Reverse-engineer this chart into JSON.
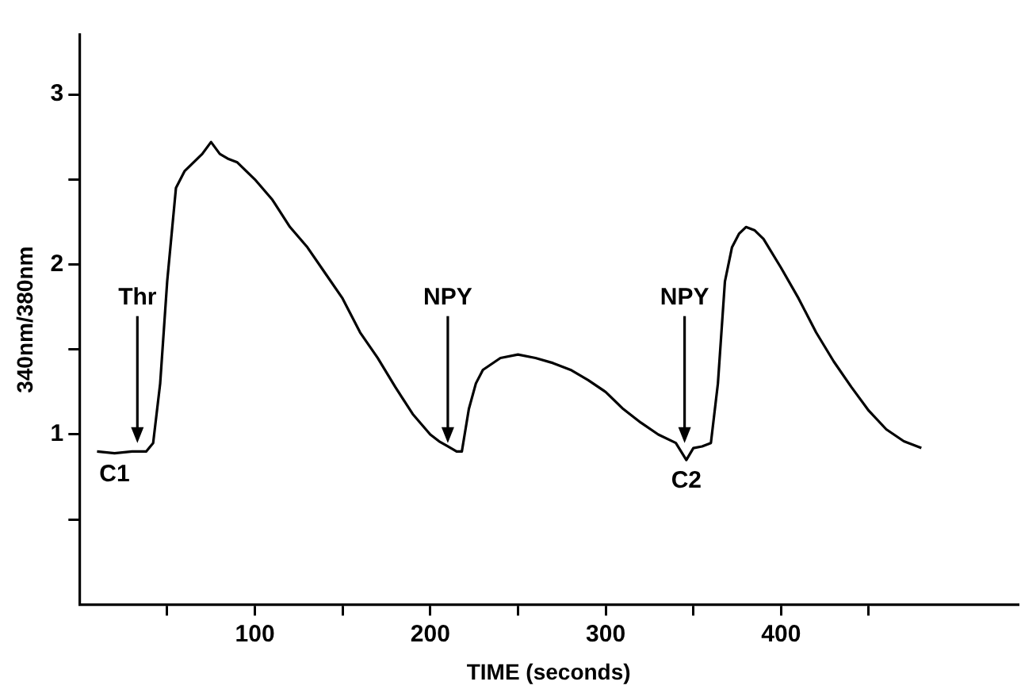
{
  "chart_data": {
    "type": "line",
    "xlabel": "TIME (seconds)",
    "ylabel": "340nm/380nm",
    "x": [
      10,
      20,
      30,
      38,
      42,
      46,
      50,
      55,
      60,
      65,
      70,
      75,
      80,
      85,
      90,
      100,
      110,
      120,
      130,
      140,
      150,
      160,
      170,
      180,
      190,
      200,
      205,
      210,
      215,
      218,
      222,
      226,
      230,
      240,
      250,
      260,
      270,
      280,
      290,
      300,
      310,
      320,
      330,
      340,
      343,
      346,
      350,
      355,
      360,
      364,
      368,
      372,
      376,
      380,
      385,
      390,
      400,
      410,
      420,
      430,
      440,
      450,
      460,
      470,
      480
    ],
    "series": [
      {
        "color": "#000000",
        "values": [
          0.9,
          0.89,
          0.9,
          0.9,
          0.95,
          1.3,
          1.9,
          2.45,
          2.55,
          2.6,
          2.65,
          2.72,
          2.65,
          2.62,
          2.6,
          2.5,
          2.38,
          2.22,
          2.1,
          1.95,
          1.8,
          1.6,
          1.45,
          1.28,
          1.12,
          1.0,
          0.96,
          0.93,
          0.9,
          0.9,
          1.15,
          1.3,
          1.38,
          1.45,
          1.47,
          1.45,
          1.42,
          1.38,
          1.32,
          1.25,
          1.15,
          1.07,
          1.0,
          0.95,
          0.9,
          0.85,
          0.92,
          0.93,
          0.95,
          1.3,
          1.9,
          2.1,
          2.18,
          2.22,
          2.2,
          2.15,
          1.98,
          1.8,
          1.6,
          1.43,
          1.28,
          1.14,
          1.03,
          0.96,
          0.92
        ]
      }
    ],
    "xlim": [
      0,
      535
    ],
    "ylim": [
      0,
      3.35
    ],
    "xticks": [
      {
        "value": 50,
        "label": null
      },
      100,
      {
        "value": 150,
        "label": null
      },
      200,
      {
        "value": 250,
        "label": null
      },
      300,
      {
        "value": 350,
        "label": null
      },
      400,
      {
        "value": 450,
        "label": null
      }
    ],
    "yticks": [
      {
        "value": 0.5,
        "label": null
      },
      1,
      {
        "value": 1.5,
        "label": null
      },
      2,
      {
        "value": 2.5,
        "label": null
      },
      3
    ],
    "annotations": [
      {
        "text": "Thr",
        "x": 33,
        "y": 0.95
      },
      {
        "text": "NPY",
        "x": 210,
        "y": 0.95
      },
      {
        "text": "NPY",
        "x": 345,
        "y": 0.95
      },
      {
        "text": "C1",
        "x": 20,
        "y": 0.89
      },
      {
        "text": "C2",
        "x": 346,
        "y": 0.85
      }
    ],
    "grid": false,
    "legend": false,
    "marker": "none",
    "line_style": "solid"
  }
}
